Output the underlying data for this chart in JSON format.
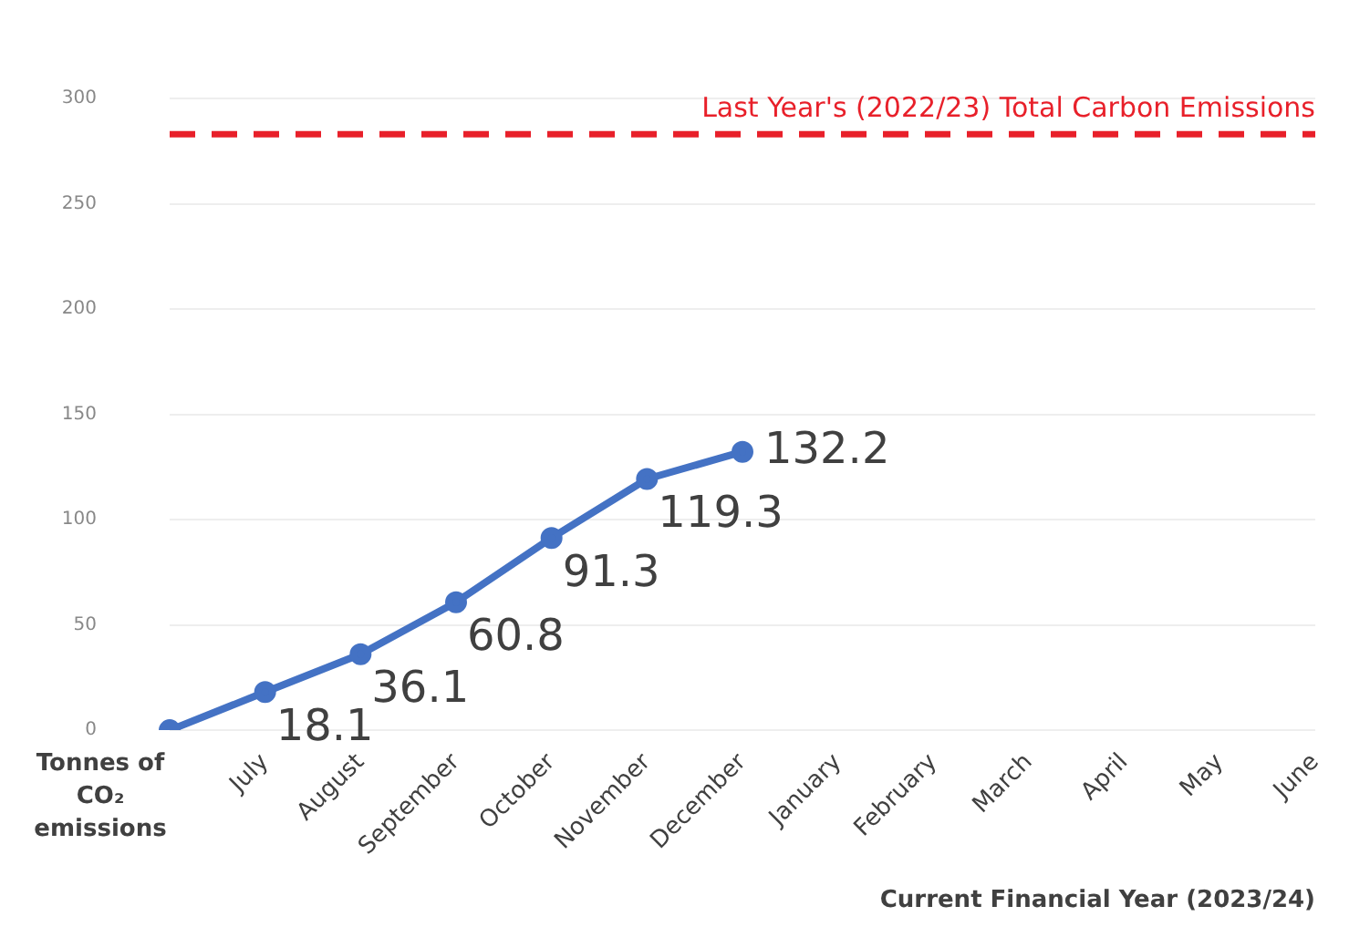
{
  "chart_data": {
    "type": "line",
    "ylabel": "Tonnes of CO₂ emissions",
    "xlabel": "Current Financial Year (2023/24)",
    "categories": [
      null,
      "July",
      "August",
      "September",
      "October",
      "November",
      "December",
      "January",
      "February",
      "March",
      "April",
      "May",
      "June"
    ],
    "series": [
      {
        "color": "#4472c4",
        "values": [
          0,
          18.1,
          36.1,
          60.8,
          91.3,
          119.3,
          132.2,
          null,
          null,
          null,
          null,
          null,
          null
        ],
        "value_labels": [
          null,
          "18.1",
          "36.1",
          "60.8",
          "91.3",
          "119.3",
          "132.2",
          null,
          null,
          null,
          null,
          null,
          null
        ]
      }
    ],
    "ylim": [
      0,
      300
    ],
    "yticks": [
      0,
      50,
      100,
      150,
      200,
      250,
      300
    ],
    "grid": "y",
    "legend": false,
    "marker": "circle",
    "line_style": "solid",
    "ref_lines": [
      {
        "axis": "y",
        "value": 283,
        "label": "Last Year's (2022/23) Total Carbon Emissions",
        "color": "#e8202a",
        "line_style": "dashed"
      }
    ]
  }
}
